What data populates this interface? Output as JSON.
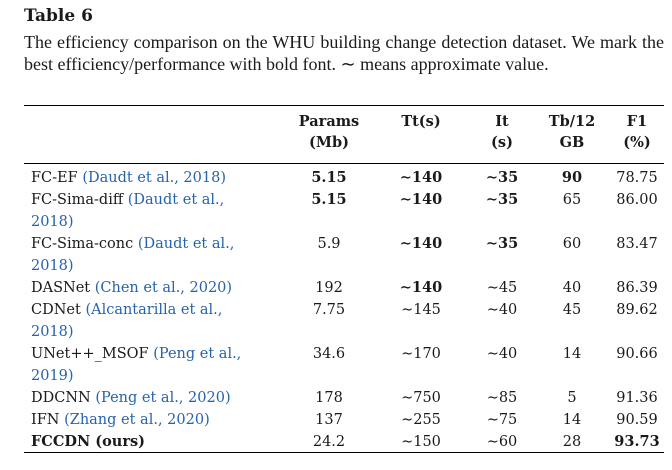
{
  "table_label": "Table 6",
  "caption": "The efficiency comparison on the WHU building change detection dataset. We mark the best efficiency/performance with bold font. ∼ means approximate value.",
  "columns": [
    {
      "line1": "",
      "line2": ""
    },
    {
      "line1": "Params",
      "line2": "(Mb)"
    },
    {
      "line1": "Tt(s)",
      "line2": ""
    },
    {
      "line1": "It",
      "line2": "(s)"
    },
    {
      "line1": "Tb/12",
      "line2": "GB"
    },
    {
      "line1": "F1",
      "line2": "(%)"
    }
  ],
  "rows": [
    {
      "name": "FC-EF ",
      "ref": "(Daudt et al., 2018)",
      "params": "5.15",
      "tt": "∼140",
      "it": "∼35",
      "tb": "90",
      "f1": "78.75"
    },
    {
      "name": "FC-Sima-diff ",
      "ref": "(Daudt et al., 2018)",
      "params": "5.15",
      "tt": "∼140",
      "it": "∼35",
      "tb": "65",
      "f1": "86.00"
    },
    {
      "name": "FC-Sima-conc ",
      "ref": "(Daudt et al., 2018)",
      "params": "5.9",
      "tt": "∼140",
      "it": "∼35",
      "tb": "60",
      "f1": "83.47"
    },
    {
      "name": "DASNet ",
      "ref": "(Chen et al., 2020)",
      "params": "192",
      "tt": "∼140",
      "it": "∼45",
      "tb": "40",
      "f1": "86.39"
    },
    {
      "name": "CDNet ",
      "ref": "(Alcantarilla et al., 2018)",
      "params": "7.75",
      "tt": "∼145",
      "it": "∼40",
      "tb": "45",
      "f1": "89.62"
    },
    {
      "name": "UNet++_MSOF ",
      "ref": "(Peng et al., 2019)",
      "params": "34.6",
      "tt": "∼170",
      "it": "∼40",
      "tb": "14",
      "f1": "90.66"
    },
    {
      "name": "DDCNN ",
      "ref": "(Peng et al., 2020)",
      "params": "178",
      "tt": "∼750",
      "it": "∼85",
      "tb": "5",
      "f1": "91.36"
    },
    {
      "name": "IFN ",
      "ref": "(Zhang et al., 2020)",
      "params": "137",
      "tt": "∼255",
      "it": "∼75",
      "tb": "14",
      "f1": "90.59"
    },
    {
      "name": "FCCDN (ours)",
      "ref": "",
      "params": "24.2",
      "tt": "∼150",
      "it": "∼60",
      "tb": "28",
      "f1": "93.73"
    }
  ]
}
